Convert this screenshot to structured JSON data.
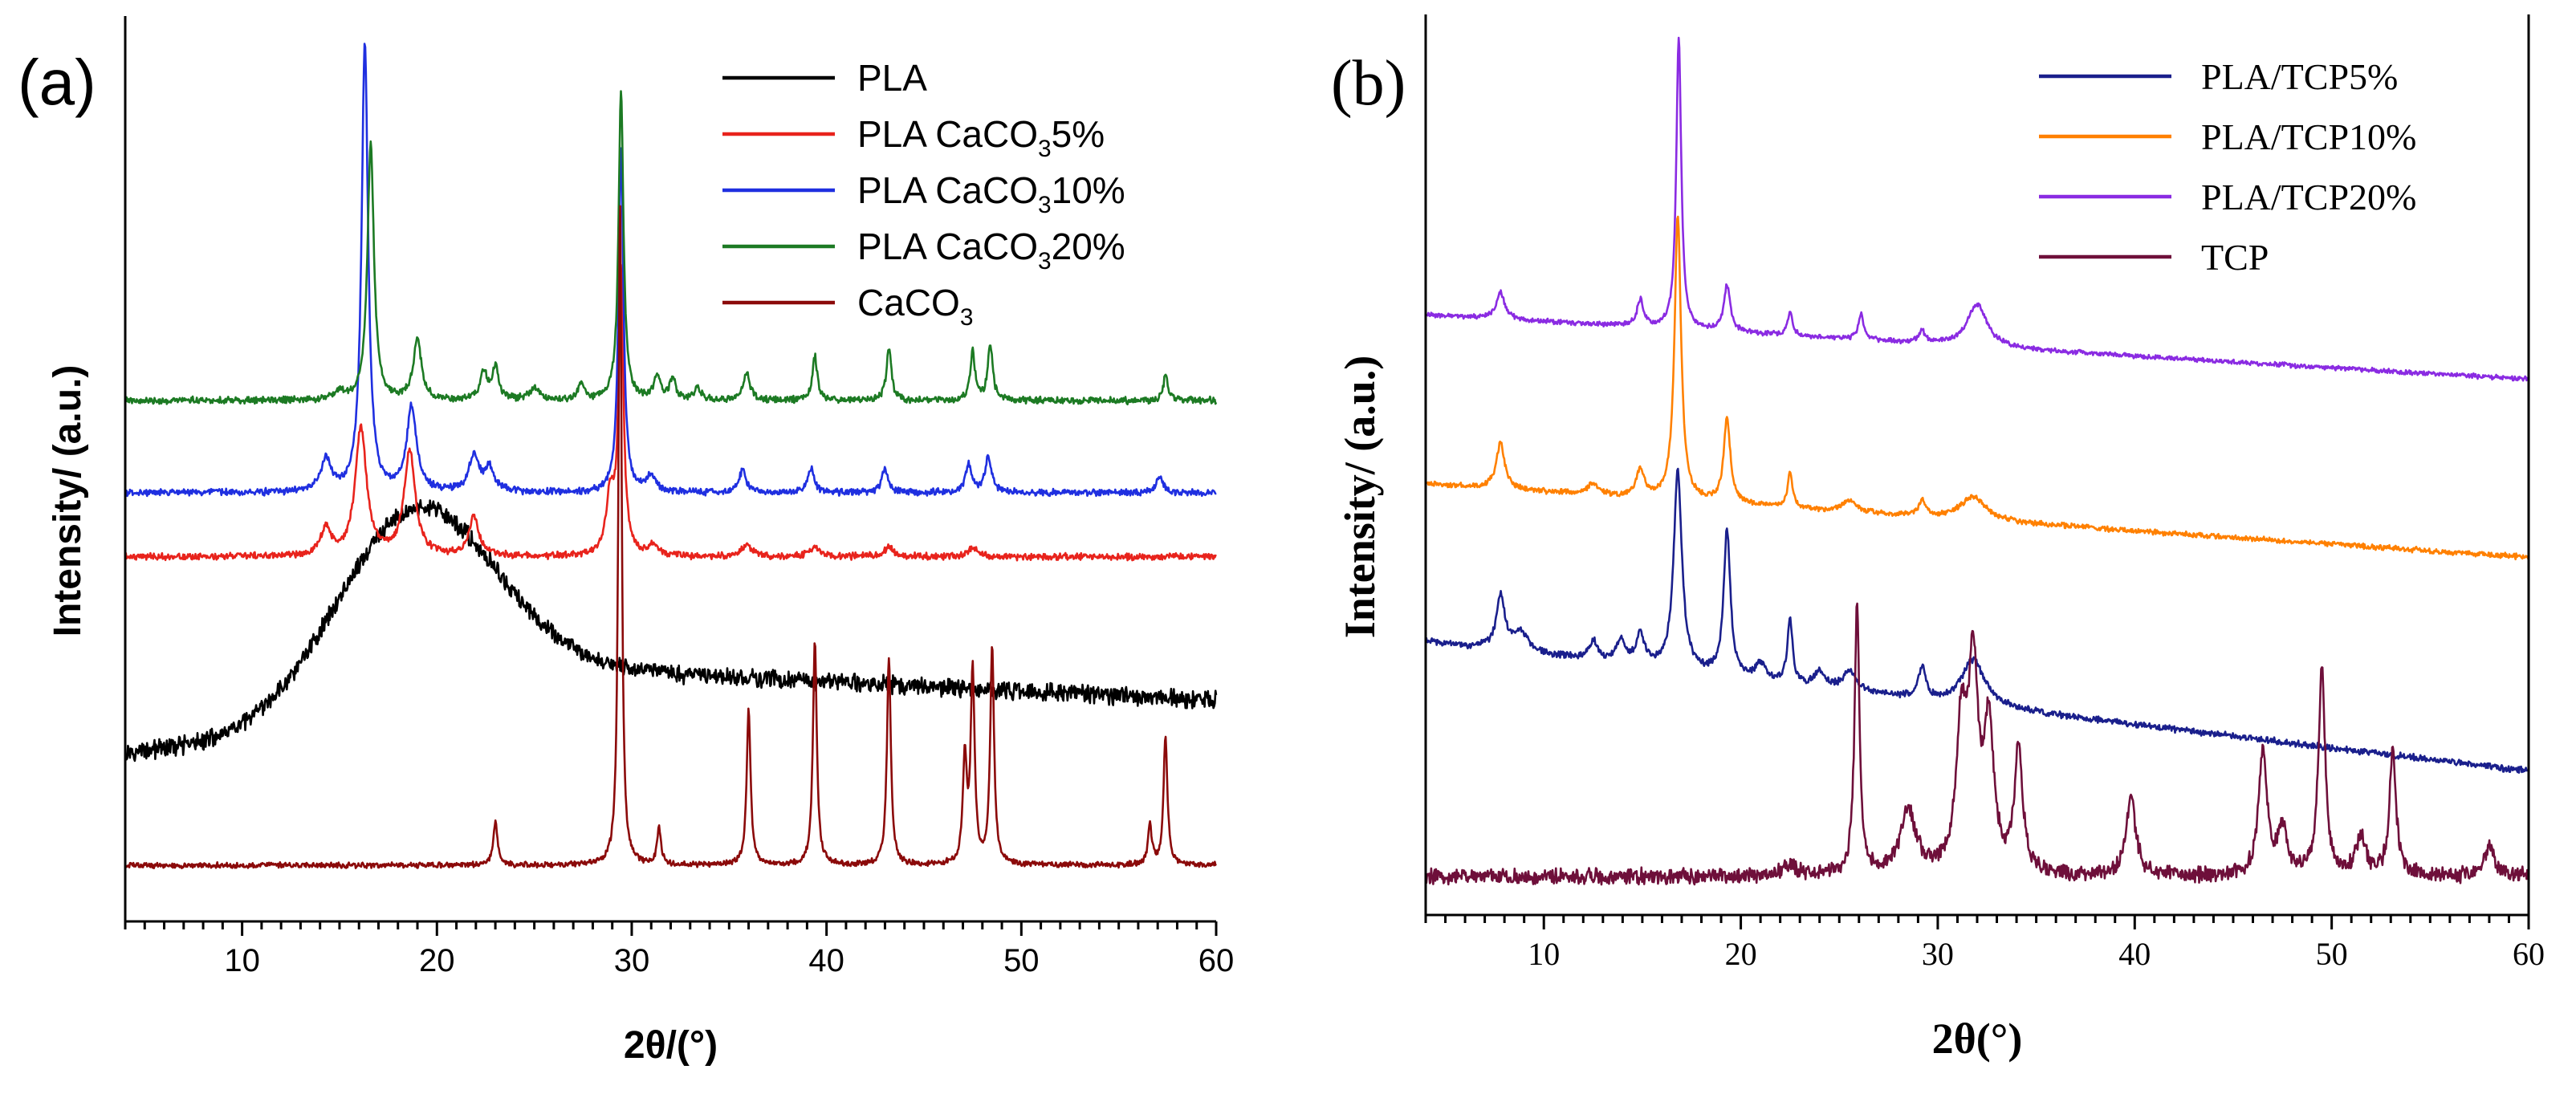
{
  "chart_data": [
    {
      "panel": "(a)",
      "type": "line",
      "title": "",
      "xlabel": "2θ/(°)",
      "ylabel": "Intensity/ (a.u.)",
      "xlim": [
        4,
        60
      ],
      "xticks": [
        10,
        20,
        30,
        40,
        50,
        60
      ],
      "ylim": [
        -0.4,
        10.9
      ],
      "grid": false,
      "yticks_shown": false,
      "legend": {
        "position": "top-right"
      },
      "series": [
        {
          "name": "PLA",
          "name_main": "PLA",
          "name_sub": "",
          "name_tail": "",
          "color": "#000000",
          "offset": 1.7,
          "noise": 0.13,
          "baseline": "amorphous",
          "peaks": []
        },
        {
          "name": "PLA CaCO35%",
          "name_main": "PLA CaCO",
          "name_sub": "3",
          "name_tail": "5%",
          "color": "#e8231c",
          "offset": 4.15,
          "noise": 0.05,
          "baseline": "flat",
          "peaks": [
            [
              14.3,
              0.35,
              0.3
            ],
            [
              16.1,
              1.6,
              0.35
            ],
            [
              18.6,
              1.3,
              0.35
            ],
            [
              21.9,
              0.5,
              0.3
            ],
            [
              28.9,
              0.75,
              0.25
            ],
            [
              29.45,
              3.5,
              0.15
            ],
            [
              31.1,
              0.15,
              0.3
            ],
            [
              35.9,
              0.15,
              0.3
            ],
            [
              39.4,
              0.12,
              0.3
            ],
            [
              43.2,
              0.12,
              0.3
            ],
            [
              47.5,
              0.12,
              0.3
            ]
          ]
        },
        {
          "name": "PLA CaCO310%",
          "name_main": "PLA CaCO",
          "name_sub": "3",
          "name_tail": "10%",
          "color": "#1f2fe0",
          "offset": 4.95,
          "noise": 0.05,
          "baseline": "flat",
          "peaks": [
            [
              14.3,
              0.4,
              0.3
            ],
            [
              16.3,
              5.6,
              0.2
            ],
            [
              18.7,
              1.05,
              0.3
            ],
            [
              21.9,
              0.45,
              0.3
            ],
            [
              22.7,
              0.3,
              0.3
            ],
            [
              29.45,
              4.3,
              0.15
            ],
            [
              31.0,
              0.2,
              0.3
            ],
            [
              35.7,
              0.3,
              0.2
            ],
            [
              39.2,
              0.3,
              0.2
            ],
            [
              43.0,
              0.3,
              0.2
            ],
            [
              47.3,
              0.35,
              0.2
            ],
            [
              48.3,
              0.45,
              0.2
            ],
            [
              57.1,
              0.2,
              0.2
            ]
          ]
        },
        {
          "name": "PLA CaCO320%",
          "name_main": "PLA CaCO",
          "name_sub": "3",
          "name_tail": "20%",
          "color": "#1c7a23",
          "offset": 6.1,
          "noise": 0.05,
          "baseline": "flat",
          "peaks": [
            [
              15.0,
              0.1,
              0.3
            ],
            [
              16.6,
              3.2,
              0.2
            ],
            [
              19.0,
              0.75,
              0.25
            ],
            [
              22.4,
              0.35,
              0.2
            ],
            [
              23.0,
              0.4,
              0.2
            ],
            [
              25.0,
              0.15,
              0.3
            ],
            [
              27.4,
              0.2,
              0.2
            ],
            [
              29.45,
              3.85,
              0.15
            ],
            [
              31.3,
              0.3,
              0.2
            ],
            [
              32.1,
              0.25,
              0.2
            ],
            [
              33.4,
              0.15,
              0.2
            ],
            [
              35.9,
              0.35,
              0.2
            ],
            [
              39.4,
              0.55,
              0.15
            ],
            [
              43.2,
              0.65,
              0.15
            ],
            [
              47.5,
              0.6,
              0.15
            ],
            [
              48.4,
              0.7,
              0.15
            ],
            [
              57.4,
              0.3,
              0.15
            ]
          ]
        },
        {
          "name": "CaCO3",
          "name_main": "CaCO",
          "name_sub": "3",
          "name_tail": "",
          "color": "#8b0a0a",
          "offset": 0.3,
          "noise": 0.04,
          "baseline": "flat",
          "peaks": [
            [
              23.0,
              0.55,
              0.13
            ],
            [
              29.4,
              8.3,
              0.1
            ],
            [
              31.4,
              0.45,
              0.12
            ],
            [
              36.0,
              1.95,
              0.12
            ],
            [
              39.4,
              2.8,
              0.12
            ],
            [
              43.2,
              2.6,
              0.12
            ],
            [
              47.1,
              1.3,
              0.12
            ],
            [
              47.5,
              2.4,
              0.12
            ],
            [
              48.5,
              2.7,
              0.12
            ],
            [
              56.6,
              0.5,
              0.12
            ],
            [
              57.4,
              1.6,
              0.12
            ]
          ]
        }
      ]
    },
    {
      "panel": "(b)",
      "type": "line",
      "title": "",
      "xlabel": "2θ(°)",
      "ylabel": "Intensity/ (a.u.)",
      "xlim": [
        4,
        60
      ],
      "xticks": [
        10,
        20,
        30,
        40,
        50,
        60
      ],
      "ylim": [
        -0.3,
        11.4
      ],
      "grid": false,
      "yticks_shown": false,
      "legend": {
        "position": "top-right"
      },
      "series": [
        {
          "name": "PLA/TCP5%",
          "color": "#1a1f8c",
          "offset": 3.25,
          "slope": -0.03,
          "noise": 0.05,
          "peaks": [
            [
              7.8,
              0.7,
              0.25
            ],
            [
              8.8,
              0.25,
              0.5
            ],
            [
              12.5,
              0.25,
              0.3
            ],
            [
              13.9,
              0.3,
              0.25
            ],
            [
              14.9,
              0.4,
              0.25
            ],
            [
              16.8,
              2.6,
              0.25
            ],
            [
              19.3,
              1.9,
              0.2
            ],
            [
              21.0,
              0.2,
              0.3
            ],
            [
              22.5,
              0.85,
              0.15
            ],
            [
              24.0,
              0.2,
              0.3
            ],
            [
              25.5,
              0.25,
              0.4
            ],
            [
              29.2,
              0.4,
              0.2
            ],
            [
              31.8,
              0.6,
              0.7
            ]
          ]
        },
        {
          "name": "PLA/TCP10%",
          "color": "#ff8000",
          "offset": 5.3,
          "slope": -0.017,
          "noise": 0.04,
          "peaks": [
            [
              7.8,
              0.6,
              0.25
            ],
            [
              12.5,
              0.15,
              0.3
            ],
            [
              14.9,
              0.35,
              0.25
            ],
            [
              16.8,
              3.7,
              0.2
            ],
            [
              19.3,
              1.1,
              0.2
            ],
            [
              22.5,
              0.45,
              0.15
            ],
            [
              25.5,
              0.15,
              0.4
            ],
            [
              29.2,
              0.2,
              0.2
            ],
            [
              31.8,
              0.3,
              0.8
            ]
          ]
        },
        {
          "name": "PLA/TCP20%",
          "color": "#8a2be2",
          "offset": 7.5,
          "slope": -0.015,
          "noise": 0.035,
          "peaks": [
            [
              7.8,
              0.35,
              0.25
            ],
            [
              14.9,
              0.35,
              0.2
            ],
            [
              16.85,
              3.8,
              0.15
            ],
            [
              19.3,
              0.6,
              0.2
            ],
            [
              22.5,
              0.3,
              0.15
            ],
            [
              26.1,
              0.35,
              0.15
            ],
            [
              29.2,
              0.15,
              0.2
            ],
            [
              32.0,
              0.55,
              0.6
            ]
          ]
        },
        {
          "name": "TCP",
          "color": "#6e0f3a",
          "offset": 0.2,
          "slope": 0.0,
          "noise": 0.12,
          "peaks": [
            [
              22.5,
              0.15,
              0.4
            ],
            [
              25.9,
              3.5,
              0.15
            ],
            [
              28.5,
              0.8,
              0.5
            ],
            [
              31.2,
              1.8,
              0.3
            ],
            [
              31.8,
              2.6,
              0.3
            ],
            [
              32.6,
              1.8,
              0.3
            ],
            [
              34.1,
              1.6,
              0.25
            ],
            [
              39.8,
              1.0,
              0.3
            ],
            [
              46.5,
              1.6,
              0.25
            ],
            [
              47.5,
              0.6,
              0.3
            ],
            [
              49.5,
              2.7,
              0.2
            ],
            [
              51.5,
              0.5,
              0.3
            ],
            [
              53.1,
              1.6,
              0.2
            ],
            [
              58.0,
              0.4,
              0.3
            ]
          ]
        }
      ]
    }
  ]
}
